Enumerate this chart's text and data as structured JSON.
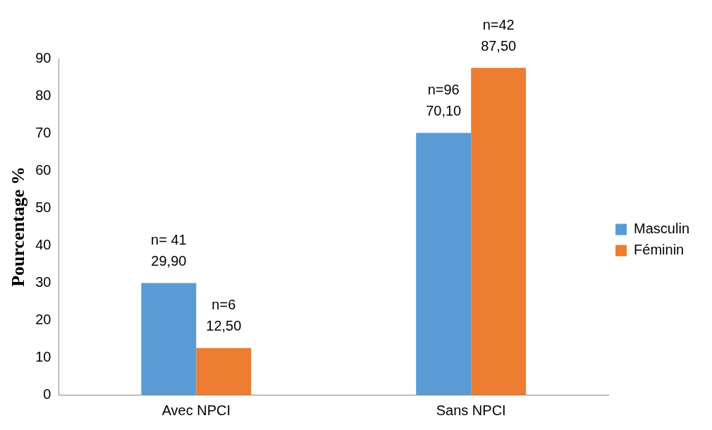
{
  "chart_data": {
    "type": "bar",
    "ylabel": "Pourcentage %",
    "categories": [
      "Avec NPCI",
      "Sans NPCI"
    ],
    "series": [
      {
        "name": "Masculin",
        "color": "#5b9bd5",
        "values": [
          29.9,
          70.1
        ],
        "value_labels": [
          "n= 41\n29,90",
          "n=96\n70,10"
        ]
      },
      {
        "name": "Féminin",
        "color": "#ed7d31",
        "values": [
          12.5,
          87.5
        ],
        "value_labels": [
          "n=6\n12,50",
          "n=42\n87,50"
        ]
      }
    ],
    "ylim": [
      0,
      90
    ],
    "yticks": [
      0,
      10,
      20,
      30,
      40,
      50,
      60,
      70,
      80,
      90
    ],
    "grid": false,
    "legend": "right"
  }
}
